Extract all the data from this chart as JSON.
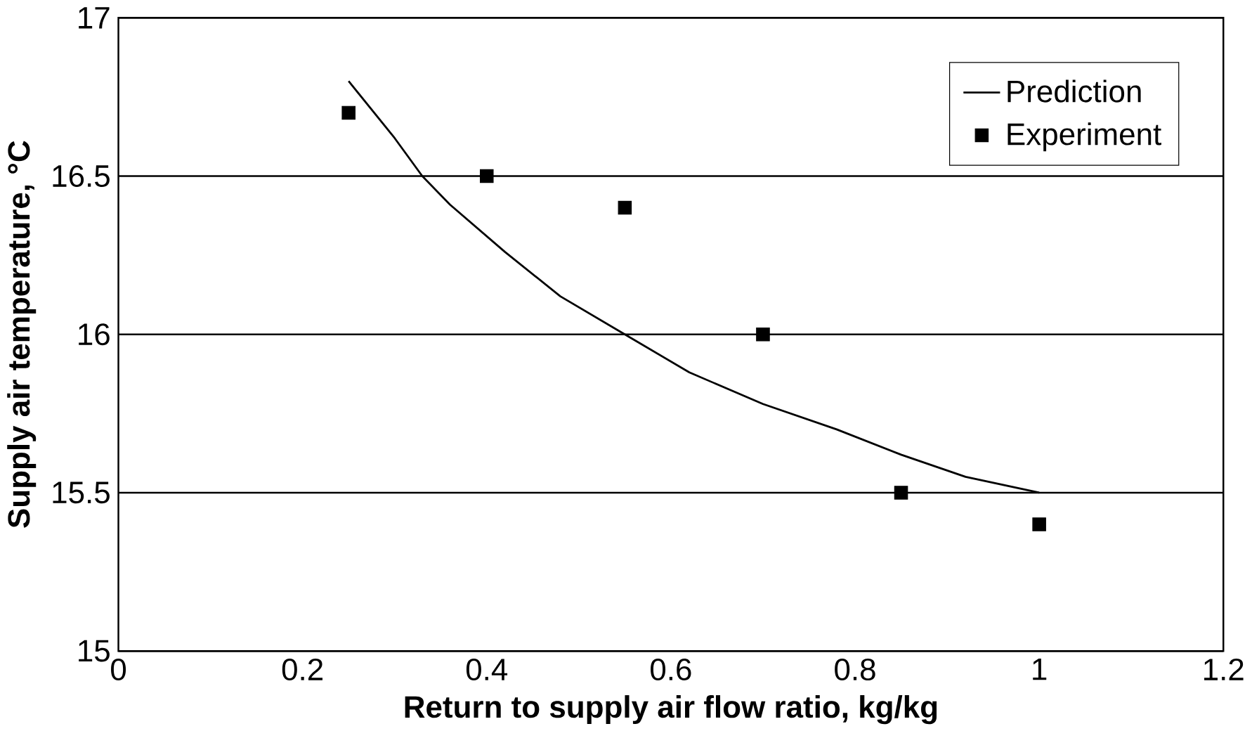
{
  "chart_data": {
    "type": "line",
    "xlabel": "Return to supply air flow ratio, kg/kg",
    "ylabel": "Supply air temperature, °C",
    "xlim": [
      0,
      1.2
    ],
    "xticks": [
      0,
      0.2,
      0.4,
      0.6,
      0.8,
      1,
      1.2
    ],
    "ylim": [
      15,
      17
    ],
    "yticks": [
      15,
      15.5,
      16,
      16.5,
      17
    ],
    "grid": "y",
    "legend": "top right",
    "series": [
      {
        "name": "Prediction",
        "color": "#000000",
        "marker": "none",
        "x": [
          0.25,
          0.3,
          0.33,
          0.36,
          0.42,
          0.48,
          0.55,
          0.62,
          0.7,
          0.78,
          0.85,
          0.92,
          1.0
        ],
        "values": [
          16.8,
          16.62,
          16.5,
          16.41,
          16.26,
          16.12,
          16.0,
          15.88,
          15.78,
          15.7,
          15.62,
          15.55,
          15.5
        ]
      },
      {
        "name": "Experiment",
        "type": "scatter",
        "color": "#000000",
        "marker": "square",
        "x": [
          0.25,
          0.4,
          0.55,
          0.7,
          0.85,
          1.0
        ],
        "values": [
          16.7,
          16.5,
          16.4,
          16.0,
          15.5,
          15.4
        ]
      }
    ]
  }
}
